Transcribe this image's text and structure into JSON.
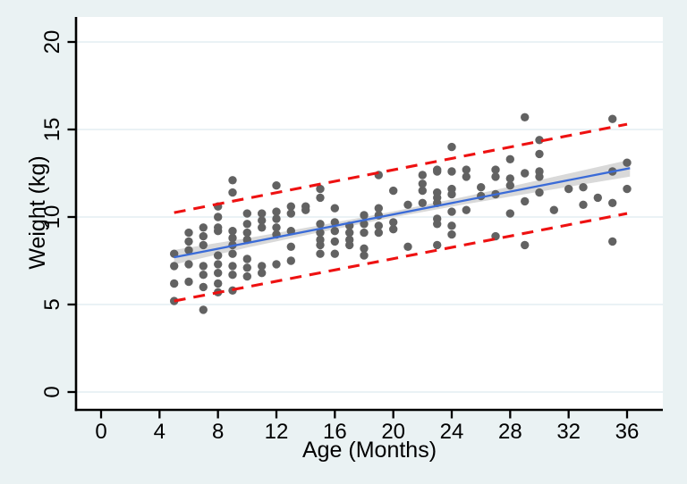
{
  "chart_data": {
    "type": "scatter",
    "title": "",
    "xlabel": "Age (Months)",
    "ylabel": "Weight (kg)",
    "xlim": [
      0,
      36
    ],
    "ylim": [
      0,
      20
    ],
    "xticks": [
      0,
      4,
      8,
      12,
      16,
      20,
      24,
      28,
      32,
      36
    ],
    "yticks": [
      0,
      5,
      10,
      15,
      20
    ],
    "grid": "horizontal",
    "legend": "none",
    "colors": {
      "background": "#EAF2F3",
      "plot_background": "#FFFFFF",
      "gridline": "#E3EDF2",
      "axis": "#000000",
      "point": "#626262",
      "fit_line": "#3A6BD8",
      "ci_band": "#D9D9D9",
      "prediction_line": "#EE1111"
    },
    "series": [
      {
        "name": "observed-weights",
        "type": "scatter",
        "color": "#626262",
        "points": [
          [
            5,
            7.9
          ],
          [
            5,
            7.2
          ],
          [
            5,
            6.2
          ],
          [
            5,
            5.2
          ],
          [
            6,
            9.1
          ],
          [
            6,
            8.6
          ],
          [
            6,
            8.1
          ],
          [
            6,
            7.3
          ],
          [
            6,
            6.3
          ],
          [
            7,
            9.4
          ],
          [
            7,
            8.9
          ],
          [
            7,
            8.4
          ],
          [
            7,
            7.2
          ],
          [
            7,
            6.7
          ],
          [
            7,
            6.0
          ],
          [
            7,
            4.7
          ],
          [
            8,
            10.6
          ],
          [
            8,
            10.0
          ],
          [
            8,
            9.4
          ],
          [
            8,
            9.2
          ],
          [
            8,
            7.8
          ],
          [
            8,
            7.3
          ],
          [
            8,
            6.8
          ],
          [
            8,
            6.2
          ],
          [
            8,
            5.7
          ],
          [
            9,
            12.1
          ],
          [
            9,
            11.4
          ],
          [
            9,
            9.2
          ],
          [
            9,
            8.8
          ],
          [
            9,
            8.4
          ],
          [
            9,
            7.9
          ],
          [
            9,
            7.2
          ],
          [
            9,
            6.7
          ],
          [
            9,
            5.8
          ],
          [
            10,
            10.2
          ],
          [
            10,
            9.6
          ],
          [
            10,
            9.1
          ],
          [
            10,
            8.7
          ],
          [
            10,
            7.6
          ],
          [
            10,
            7.1
          ],
          [
            10,
            6.6
          ],
          [
            11,
            10.2
          ],
          [
            11,
            9.8
          ],
          [
            11,
            9.4
          ],
          [
            11,
            7.2
          ],
          [
            11,
            6.8
          ],
          [
            12,
            11.8
          ],
          [
            12,
            10.3
          ],
          [
            12,
            9.9
          ],
          [
            12,
            9.4
          ],
          [
            12,
            9.0
          ],
          [
            12,
            7.3
          ],
          [
            13,
            10.6
          ],
          [
            13,
            10.2
          ],
          [
            13,
            9.2
          ],
          [
            13,
            8.3
          ],
          [
            13,
            7.5
          ],
          [
            14,
            10.6
          ],
          [
            14,
            10.4
          ],
          [
            15,
            11.6
          ],
          [
            15,
            11.1
          ],
          [
            15,
            9.6
          ],
          [
            15,
            9.1
          ],
          [
            15,
            8.7
          ],
          [
            15,
            8.4
          ],
          [
            15,
            7.9
          ],
          [
            16,
            10.5
          ],
          [
            16,
            9.7
          ],
          [
            16,
            9.2
          ],
          [
            16,
            8.6
          ],
          [
            16,
            7.9
          ],
          [
            17,
            9.5
          ],
          [
            17,
            9.1
          ],
          [
            17,
            8.7
          ],
          [
            17,
            8.4
          ],
          [
            18,
            10.1
          ],
          [
            18,
            9.6
          ],
          [
            18,
            9.1
          ],
          [
            18,
            8.2
          ],
          [
            18,
            7.8
          ],
          [
            19,
            12.4
          ],
          [
            19,
            10.5
          ],
          [
            19,
            10.1
          ],
          [
            19,
            9.5
          ],
          [
            19,
            9.1
          ],
          [
            20,
            11.5
          ],
          [
            20,
            9.7
          ],
          [
            20,
            9.3
          ],
          [
            21,
            10.7
          ],
          [
            21,
            8.3
          ],
          [
            22,
            12.4
          ],
          [
            22,
            11.9
          ],
          [
            22,
            11.5
          ],
          [
            22,
            10.8
          ],
          [
            23,
            12.7
          ],
          [
            23,
            12.6
          ],
          [
            23,
            11.4
          ],
          [
            23,
            11.1
          ],
          [
            23,
            10.8
          ],
          [
            23,
            9.9
          ],
          [
            23,
            9.6
          ],
          [
            23,
            8.4
          ],
          [
            24,
            14.0
          ],
          [
            24,
            12.6
          ],
          [
            24,
            11.6
          ],
          [
            24,
            11.3
          ],
          [
            24,
            10.3
          ],
          [
            24,
            9.5
          ],
          [
            24,
            9.0
          ],
          [
            25,
            12.7
          ],
          [
            25,
            12.3
          ],
          [
            25,
            10.4
          ],
          [
            26,
            11.7
          ],
          [
            26,
            11.2
          ],
          [
            27,
            12.7
          ],
          [
            27,
            12.3
          ],
          [
            27,
            11.3
          ],
          [
            27,
            8.9
          ],
          [
            28,
            13.3
          ],
          [
            28,
            12.2
          ],
          [
            28,
            11.8
          ],
          [
            28,
            10.2
          ],
          [
            29,
            15.7
          ],
          [
            29,
            12.5
          ],
          [
            29,
            10.9
          ],
          [
            29,
            8.4
          ],
          [
            30,
            14.4
          ],
          [
            30,
            13.6
          ],
          [
            30,
            12.6
          ],
          [
            30,
            12.3
          ],
          [
            30,
            11.4
          ],
          [
            31,
            10.4
          ],
          [
            32,
            11.6
          ],
          [
            33,
            11.7
          ],
          [
            33,
            10.7
          ],
          [
            34,
            11.1
          ],
          [
            35,
            15.6
          ],
          [
            35,
            12.6
          ],
          [
            35,
            10.8
          ],
          [
            35,
            8.6
          ],
          [
            36,
            13.1
          ],
          [
            36,
            11.6
          ]
        ]
      },
      {
        "name": "ci-band",
        "type": "area",
        "color": "#D9D9D9",
        "x": [
          5,
          10,
          15,
          20,
          25,
          30,
          36.2
        ],
        "upper": [
          8.12,
          8.79,
          9.53,
          10.32,
          11.18,
          12.11,
          13.27
        ],
        "lower": [
          7.28,
          8.25,
          9.13,
          9.98,
          10.74,
          11.45,
          12.31
        ]
      },
      {
        "name": "linear-fit",
        "type": "line",
        "color": "#3A6BD8",
        "x": [
          5,
          36.2
        ],
        "y": [
          7.7,
          12.79
        ]
      },
      {
        "name": "upper-prediction-limit",
        "type": "dashed-line",
        "color": "#EE1111",
        "x": [
          5,
          36
        ],
        "y": [
          10.25,
          15.3
        ]
      },
      {
        "name": "lower-prediction-limit",
        "type": "dashed-line",
        "color": "#EE1111",
        "x": [
          5,
          36
        ],
        "y": [
          5.2,
          10.2
        ]
      }
    ]
  }
}
